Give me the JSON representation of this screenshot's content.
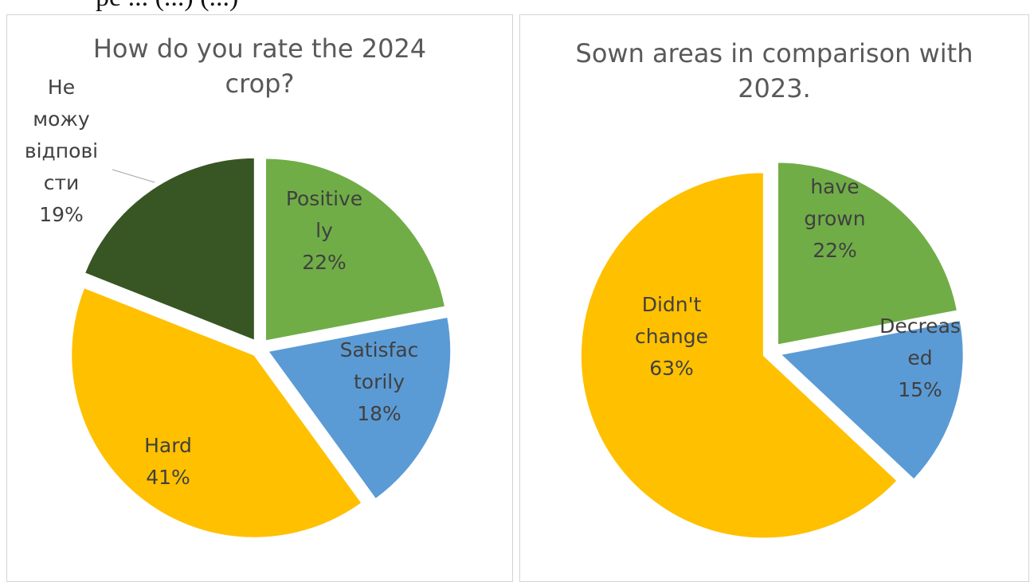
{
  "page": {
    "caption_fragment": "pe ... (...) (...)"
  },
  "chart_data": [
    {
      "type": "pie",
      "title": "How do you rate the 2024 crop?",
      "categories": [
        "Positively",
        "Satisfactorily",
        "Hard",
        "Не можу відповісти"
      ],
      "values": [
        22,
        18,
        41,
        19
      ],
      "colors": [
        "#70AD47",
        "#5B9BD5",
        "#FFC000",
        "#375623"
      ],
      "exploded": true,
      "labels": [
        {
          "lines": [
            "Positive",
            "ly"
          ],
          "pct": "22%"
        },
        {
          "lines": [
            "Satisfac",
            "torily"
          ],
          "pct": "18%"
        },
        {
          "lines": [
            "Hard"
          ],
          "pct": "41%"
        },
        {
          "lines": [
            "Не",
            "можу",
            "відпові",
            "сти"
          ],
          "pct": "19%"
        }
      ]
    },
    {
      "type": "pie",
      "title": "Sown areas in comparison with 2023.",
      "categories": [
        "have grown",
        "Decreased",
        "Didn't change"
      ],
      "values": [
        22,
        15,
        63
      ],
      "colors": [
        "#70AD47",
        "#5B9BD5",
        "#FFC000"
      ],
      "exploded": true,
      "labels": [
        {
          "lines": [
            "have",
            "grown"
          ],
          "pct": "22%"
        },
        {
          "lines": [
            "Decreas",
            "ed"
          ],
          "pct": "15%"
        },
        {
          "lines": [
            "Didn't",
            "change"
          ],
          "pct": "63%"
        }
      ]
    }
  ]
}
